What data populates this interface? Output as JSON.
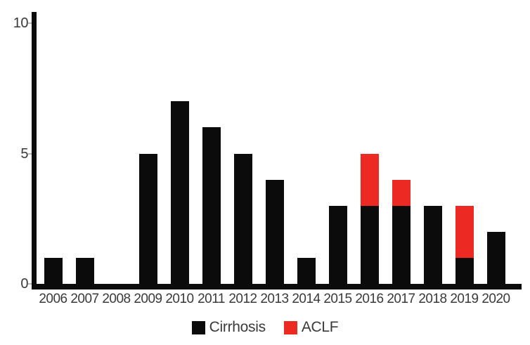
{
  "chart_data": {
    "type": "bar",
    "stacked": true,
    "title": "",
    "xlabel": "",
    "ylabel": "",
    "categories": [
      "2006",
      "2007",
      "2008",
      "2009",
      "2010",
      "2011",
      "2012",
      "2013",
      "2014",
      "2015",
      "2016",
      "2017",
      "2018",
      "2019",
      "2020"
    ],
    "series": [
      {
        "name": "Cirrhosis",
        "color": "#0b0b0c",
        "values": [
          1,
          1,
          0,
          5,
          7,
          6,
          5,
          4,
          1,
          3,
          3,
          3,
          3,
          1,
          2
        ]
      },
      {
        "name": "ACLF",
        "color": "#ed2924",
        "values": [
          0,
          0,
          0,
          0,
          0,
          0,
          0,
          0,
          0,
          0,
          2,
          1,
          0,
          2,
          0
        ]
      }
    ],
    "ylim": [
      0,
      10
    ],
    "yticks": [
      0,
      5,
      10
    ],
    "grid": false,
    "legend_position": "bottom"
  },
  "colors": {
    "axis": "#0b0b0c",
    "tick_label": "#3a3a3c",
    "background": "#ffffff"
  }
}
